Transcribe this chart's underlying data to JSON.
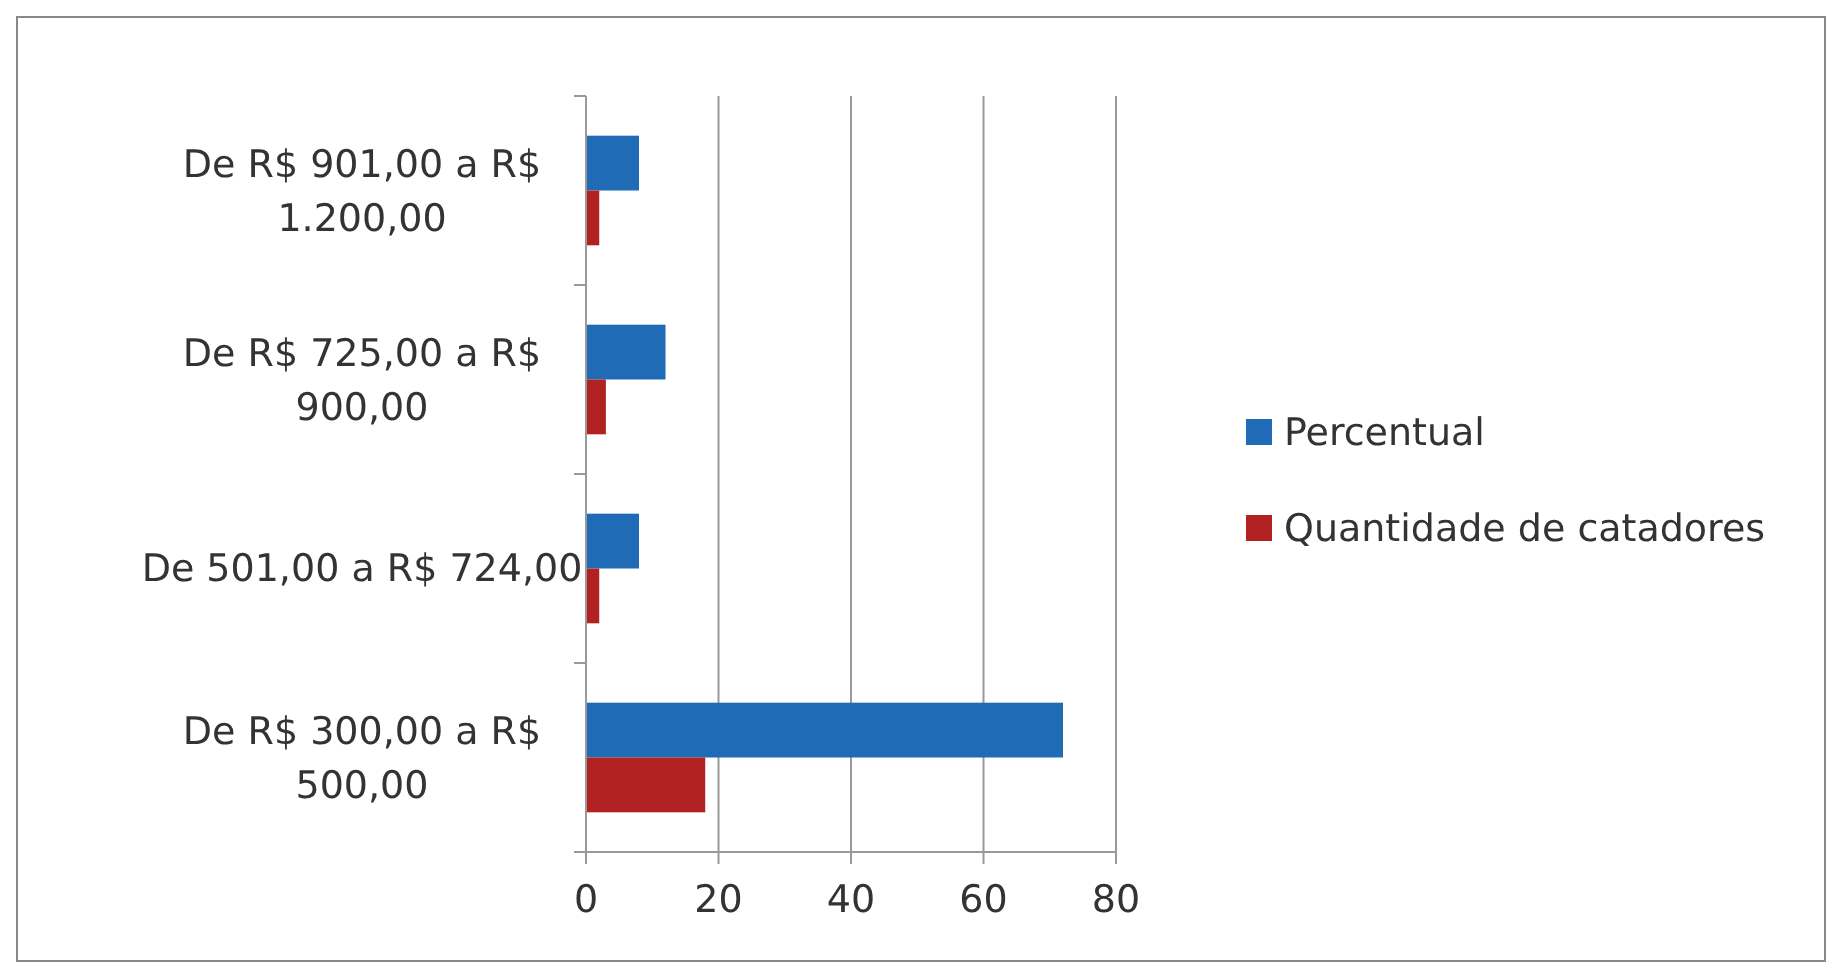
{
  "chart_data": {
    "type": "bar",
    "orientation": "horizontal",
    "categories": [
      "De R$ 901,00 a R$ 1.200,00",
      "De R$ 725,00 a R$ 900,00",
      "De 501,00 a R$ 724,00",
      "De R$ 300,00 a R$ 500,00"
    ],
    "series": [
      {
        "name": "Percentual",
        "color": "#1f6bb5",
        "values": [
          8,
          12,
          8,
          72
        ]
      },
      {
        "name": "Quantidade de catadores",
        "color": "#b22222",
        "values": [
          2,
          3,
          2,
          18
        ]
      }
    ],
    "xlim": [
      0,
      80
    ],
    "xticks": [
      0,
      20,
      40,
      60,
      80
    ],
    "grid": "x",
    "legend": "right"
  }
}
